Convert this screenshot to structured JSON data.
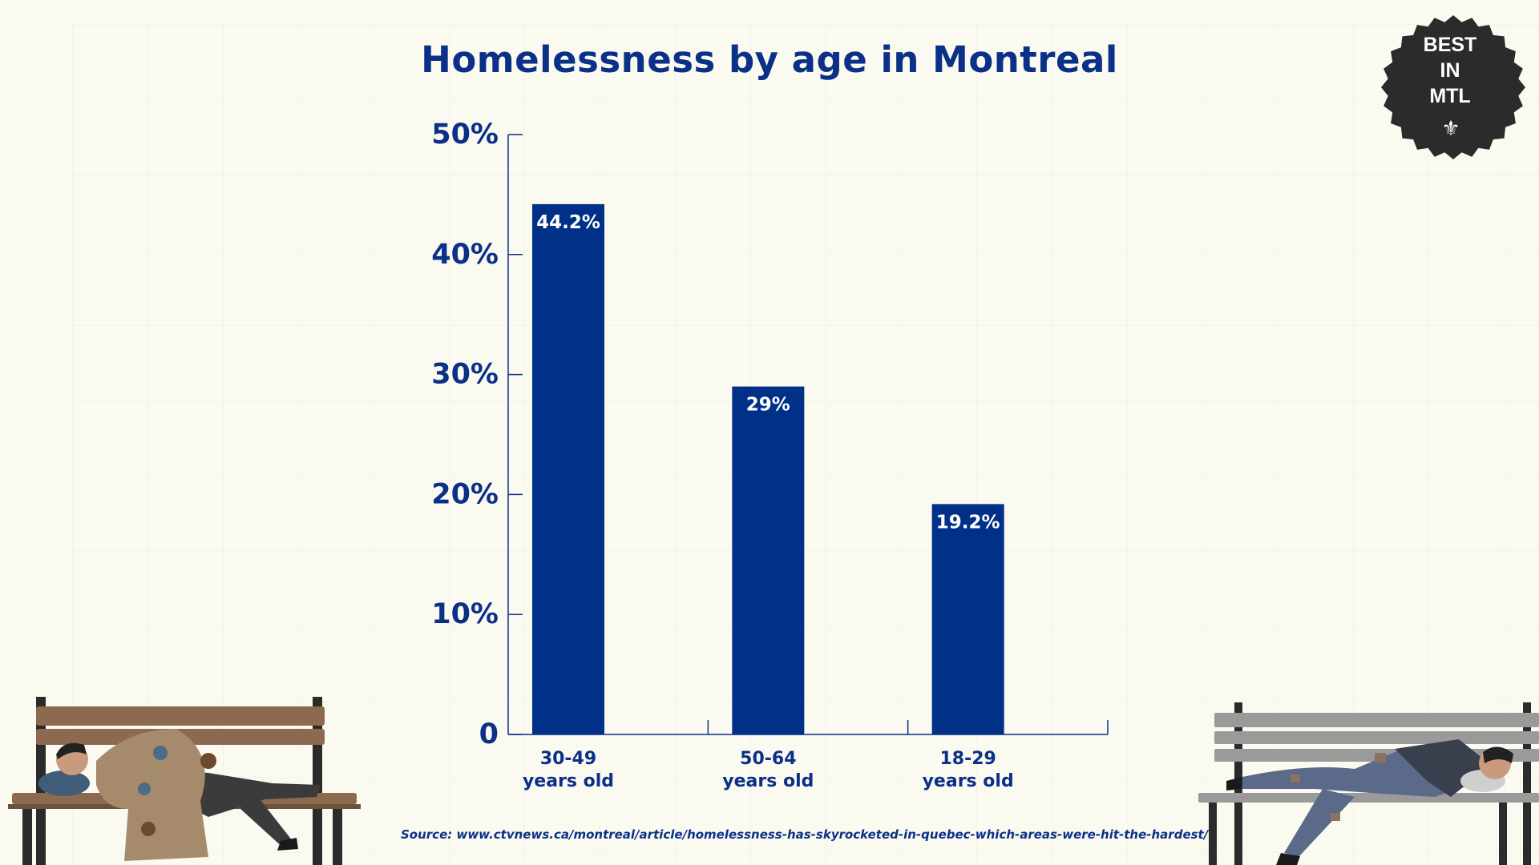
{
  "chart_data": {
    "type": "bar",
    "title": "Homelessness by age in Montreal",
    "categories": [
      [
        "30-49",
        "years old"
      ],
      [
        "50-64",
        "years old"
      ],
      [
        "18-29",
        "years old"
      ]
    ],
    "values": [
      44.2,
      29,
      19.2
    ],
    "value_labels": [
      "44.2%",
      "29%",
      "19.2%"
    ],
    "yticks": [
      0,
      10,
      20,
      30,
      40,
      50
    ],
    "ytick_labels": [
      "0",
      "10%",
      "20%",
      "30%",
      "40%",
      "50%"
    ],
    "ylim": [
      0,
      50
    ],
    "xlabel": "",
    "ylabel": "",
    "grid": false,
    "bar_color": "#003087",
    "text_color": "#0b3088",
    "source": "Source: www.ctvnews.ca/montreal/article/homelessness-has-skyrocketed-in-quebec-which-areas-were-hit-the-hardest/"
  },
  "badge": {
    "lines": [
      "BEST",
      "IN",
      "MTL"
    ],
    "icon": "fleur-de-lis-icon",
    "color": "#2b2b2b"
  },
  "illustrations": {
    "left": "person-sleeping-on-bench-left",
    "right": "person-sleeping-on-bench-right"
  }
}
